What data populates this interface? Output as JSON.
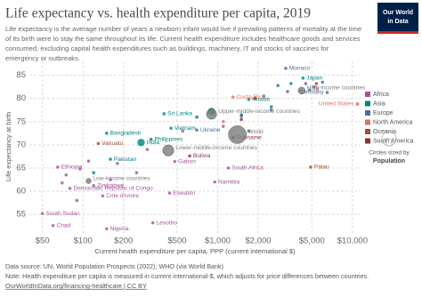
{
  "title": "Life expectancy vs. health expenditure per capita, 2019",
  "subtitle": [
    "Life expectancy is the average number of years a newborn infant would live if prevailing patterns of mortality at the time",
    "of its birth were to stay the same throughout its life. Current health expenditure includes healthcare goods and services",
    "consumed, excluding capital health expenditures such as buildings, machinery, IT and stocks of vaccines for",
    "emergency or outbreaks."
  ],
  "logo": [
    "Our World",
    "in Data"
  ],
  "footer": {
    "source": "Data source: UN, World Population Prospects (2022); WHO (via World Bank)",
    "note": "Note: Health expenditure per capita is measured in current international-$, which adjusts for price differences between countries.",
    "link": "OurWorldInData.org/financing-healthcare | CC BY"
  },
  "chart_data": {
    "type": "scatter",
    "x_log": true,
    "grid": true,
    "x_label": "Current health expenditure per capita, PPP (current international $)",
    "y_label": "Life expectancy at birth",
    "xlim": [
      40,
      11500
    ],
    "ylim": [
      51,
      88
    ],
    "xticks": [
      {
        "value": 50,
        "label": "$50"
      },
      {
        "value": 100,
        "label": "$100"
      },
      {
        "value": 200,
        "label": "$200"
      },
      {
        "value": 500,
        "label": "$500"
      },
      {
        "value": 1000,
        "label": "$1,000"
      },
      {
        "value": 2000,
        "label": "$2,000"
      },
      {
        "value": 5000,
        "label": "$5,000"
      },
      {
        "value": 10000,
        "label": "$10,000"
      }
    ],
    "yticks": [
      55,
      60,
      65,
      70,
      75,
      80,
      85
    ],
    "size_legend": {
      "title": "Circles sized by",
      "variable": "Population"
    },
    "series": [
      {
        "name": "Africa",
        "color": "#a2559c",
        "points": [
          {
            "x": 65,
            "y": 65.2,
            "pop": 112,
            "label": "Ethiopia"
          },
          {
            "x": 80,
            "y": 60.6,
            "pop": 87,
            "label": "Democratic Republic of Congo"
          },
          {
            "x": 120,
            "y": 61.2,
            "pop": 15,
            "label": "Zimbabwe"
          },
          {
            "x": 140,
            "y": 59,
            "pop": 26,
            "label": "Cote d'Ivoire"
          },
          {
            "x": 440,
            "y": 59.6,
            "pop": 1.2,
            "label": "Eswatini"
          },
          {
            "x": 50,
            "y": 55.2,
            "pop": 11,
            "label": "South Sudan"
          },
          {
            "x": 60,
            "y": 52.6,
            "pop": 16,
            "label": "Chad"
          },
          {
            "x": 330,
            "y": 53.2,
            "pop": 2.2,
            "label": "Lesotho"
          },
          {
            "x": 150,
            "y": 51.9,
            "pop": 200,
            "label": "Nigeria"
          },
          {
            "x": 480,
            "y": 66.4,
            "pop": 2.2,
            "label": "Gabon"
          },
          {
            "x": 1200,
            "y": 65,
            "pop": 58,
            "label": "South Africa"
          },
          {
            "x": 950,
            "y": 62,
            "pop": 2.5,
            "label": "Namibia"
          },
          {
            "x": 75,
            "y": 63.5,
            "pop": 20
          },
          {
            "x": 95,
            "y": 64.8,
            "pop": 30
          },
          {
            "x": 110,
            "y": 66.5,
            "pop": 25
          },
          {
            "x": 70,
            "y": 61.8,
            "pop": 12
          },
          {
            "x": 90,
            "y": 58,
            "pop": 20
          },
          {
            "x": 160,
            "y": 62.5,
            "pop": 28
          },
          {
            "x": 250,
            "y": 64,
            "pop": 10
          },
          {
            "x": 180,
            "y": 66,
            "pop": 10
          },
          {
            "x": 300,
            "y": 69,
            "pop": 35
          },
          {
            "x": 550,
            "y": 73,
            "pop": 12
          },
          {
            "x": 1100,
            "y": 74,
            "pop": 1
          }
        ]
      },
      {
        "name": "Asia",
        "color": "#00847e",
        "points": [
          {
            "x": 4300,
            "y": 84.4,
            "pop": 126,
            "label": "Japan"
          },
          {
            "x": 1700,
            "y": 79.8,
            "pop": 4.4,
            "label": "Kuwait"
          },
          {
            "x": 400,
            "y": 76.7,
            "pop": 22,
            "label": "Sri Lanka"
          },
          {
            "x": 450,
            "y": 73.6,
            "pop": 96,
            "label": "Vietnam"
          },
          {
            "x": 270,
            "y": 70.5,
            "pop": 1370,
            "label": "India"
          },
          {
            "x": 320,
            "y": 71.2,
            "pop": 108,
            "label": "Philippines"
          },
          {
            "x": 150,
            "y": 72.5,
            "pop": 165,
            "label": "Bangladesh"
          },
          {
            "x": 160,
            "y": 66.9,
            "pop": 220,
            "label": "Pakistan"
          },
          {
            "x": 900,
            "y": 77.2,
            "pop": 1400
          },
          {
            "x": 2800,
            "y": 82.8,
            "pop": 9
          },
          {
            "x": 3500,
            "y": 83.2,
            "pop": 50
          },
          {
            "x": 2200,
            "y": 80.5,
            "pop": 33
          },
          {
            "x": 700,
            "y": 76,
            "pop": 270
          },
          {
            "x": 1500,
            "y": 76.2,
            "pop": 32
          },
          {
            "x": 2500,
            "y": 78.2,
            "pop": 10
          },
          {
            "x": 120,
            "y": 64,
            "pop": 38
          }
        ]
      },
      {
        "name": "Europe",
        "color": "#4c6a9c",
        "points": [
          {
            "x": 3200,
            "y": 86.5,
            "pop": 0.04,
            "label": "Monaco"
          },
          {
            "x": 6500,
            "y": 81.3,
            "pop": 83,
            "label": "Germany"
          },
          {
            "x": 700,
            "y": 73.2,
            "pop": 44,
            "label": "Ukraine"
          },
          {
            "x": 5200,
            "y": 82.5,
            "pop": 67
          },
          {
            "x": 4500,
            "y": 83.2,
            "pop": 60
          },
          {
            "x": 3300,
            "y": 81.5,
            "pop": 47
          },
          {
            "x": 6000,
            "y": 83.5,
            "pop": 8.6
          },
          {
            "x": 2500,
            "y": 77.5,
            "pop": 38
          },
          {
            "x": 1700,
            "y": 73,
            "pop": 144
          },
          {
            "x": 4800,
            "y": 81.8,
            "pop": 17
          },
          {
            "x": 1500,
            "y": 76.5,
            "pop": 10
          }
        ]
      },
      {
        "name": "North America",
        "color": "#e56e5a",
        "points": [
          {
            "x": 1300,
            "y": 80.3,
            "pop": 5,
            "label": "Costa Rica"
          },
          {
            "x": 10900,
            "y": 78.8,
            "pop": 330,
            "label": "United States"
          },
          {
            "x": 1100,
            "y": 75,
            "pop": 127
          },
          {
            "x": 5500,
            "y": 82,
            "pop": 38
          }
        ]
      },
      {
        "name": "Oceania",
        "color": "#9a5129",
        "points": [
          {
            "x": 130,
            "y": 70.3,
            "pop": 0.3,
            "label": "Vanuatu"
          },
          {
            "x": 4900,
            "y": 65.2,
            "pop": 0.02,
            "label": "Palau"
          },
          {
            "x": 5400,
            "y": 83.2,
            "pop": 25
          }
        ]
      },
      {
        "name": "South America",
        "color": "#883039",
        "points": [
          {
            "x": 620,
            "y": 67.6,
            "pop": 12,
            "label": "Bolivia"
          },
          {
            "x": 1300,
            "y": 71.6,
            "pop": 0.6,
            "label": "Suriname"
          },
          {
            "x": 1500,
            "y": 75.5,
            "pop": 211
          },
          {
            "x": 1900,
            "y": 80,
            "pop": 19
          }
        ]
      }
    ],
    "aggregates": {
      "color": "#7b7b7b",
      "points": [
        {
          "x": 4200,
          "y": 81.7,
          "pop": 1200,
          "label": "High-income countries"
        },
        {
          "x": 900,
          "y": 76.6,
          "pop": 2500,
          "label": "Upper-middle-income countries"
        },
        {
          "x": 1400,
          "y": 72.2,
          "pop": 7700,
          "label": "World"
        },
        {
          "x": 430,
          "y": 68.8,
          "pop": 3000,
          "label": "Lower-middle-income countries"
        },
        {
          "x": 110,
          "y": 62.2,
          "pop": 650,
          "label": "Low-income countries"
        }
      ]
    }
  }
}
